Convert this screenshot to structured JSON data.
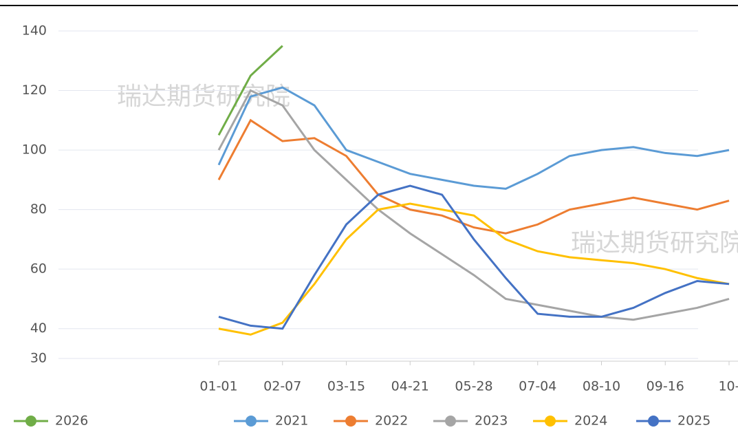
{
  "chart_data": {
    "type": "line",
    "watermark": "瑞达期货研究院",
    "categories": [
      "01-01",
      null,
      "02-07",
      null,
      "03-15",
      null,
      "04-21",
      null,
      "05-28",
      null,
      "07-04",
      null,
      "08-10",
      null,
      "09-16",
      null,
      "10-"
    ],
    "series": [
      {
        "name": "2026",
        "color": "#70ad47",
        "values": [
          105,
          125,
          135,
          null,
          null,
          null,
          null,
          null,
          null,
          null,
          null,
          null,
          null,
          null,
          null,
          null,
          null
        ]
      },
      {
        "name": "2021",
        "color": "#5b9bd5",
        "values": [
          95,
          118,
          121,
          115,
          100,
          96,
          92,
          90,
          88,
          87,
          92,
          98,
          100,
          101,
          99,
          98,
          100
        ]
      },
      {
        "name": "2022",
        "color": "#ed7d31",
        "values": [
          90,
          110,
          103,
          104,
          98,
          85,
          80,
          78,
          74,
          72,
          75,
          80,
          82,
          84,
          82,
          80,
          83
        ]
      },
      {
        "name": "2023",
        "color": "#a5a5a5",
        "values": [
          100,
          120,
          115,
          100,
          90,
          80,
          72,
          65,
          58,
          50,
          48,
          46,
          44,
          43,
          45,
          47,
          50
        ]
      },
      {
        "name": "2024",
        "color": "#ffc000",
        "values": [
          40,
          38,
          42,
          55,
          70,
          80,
          82,
          80,
          78,
          70,
          66,
          64,
          63,
          62,
          60,
          57,
          55
        ]
      },
      {
        "name": "2025",
        "color": "#4472c4",
        "values": [
          44,
          41,
          40,
          58,
          75,
          85,
          88,
          85,
          70,
          57,
          45,
          44,
          44,
          47,
          52,
          56,
          55
        ]
      }
    ],
    "ylim": [
      30,
      140
    ],
    "yticks": [
      30,
      40,
      60,
      80,
      100,
      120,
      140
    ],
    "grid": true
  }
}
